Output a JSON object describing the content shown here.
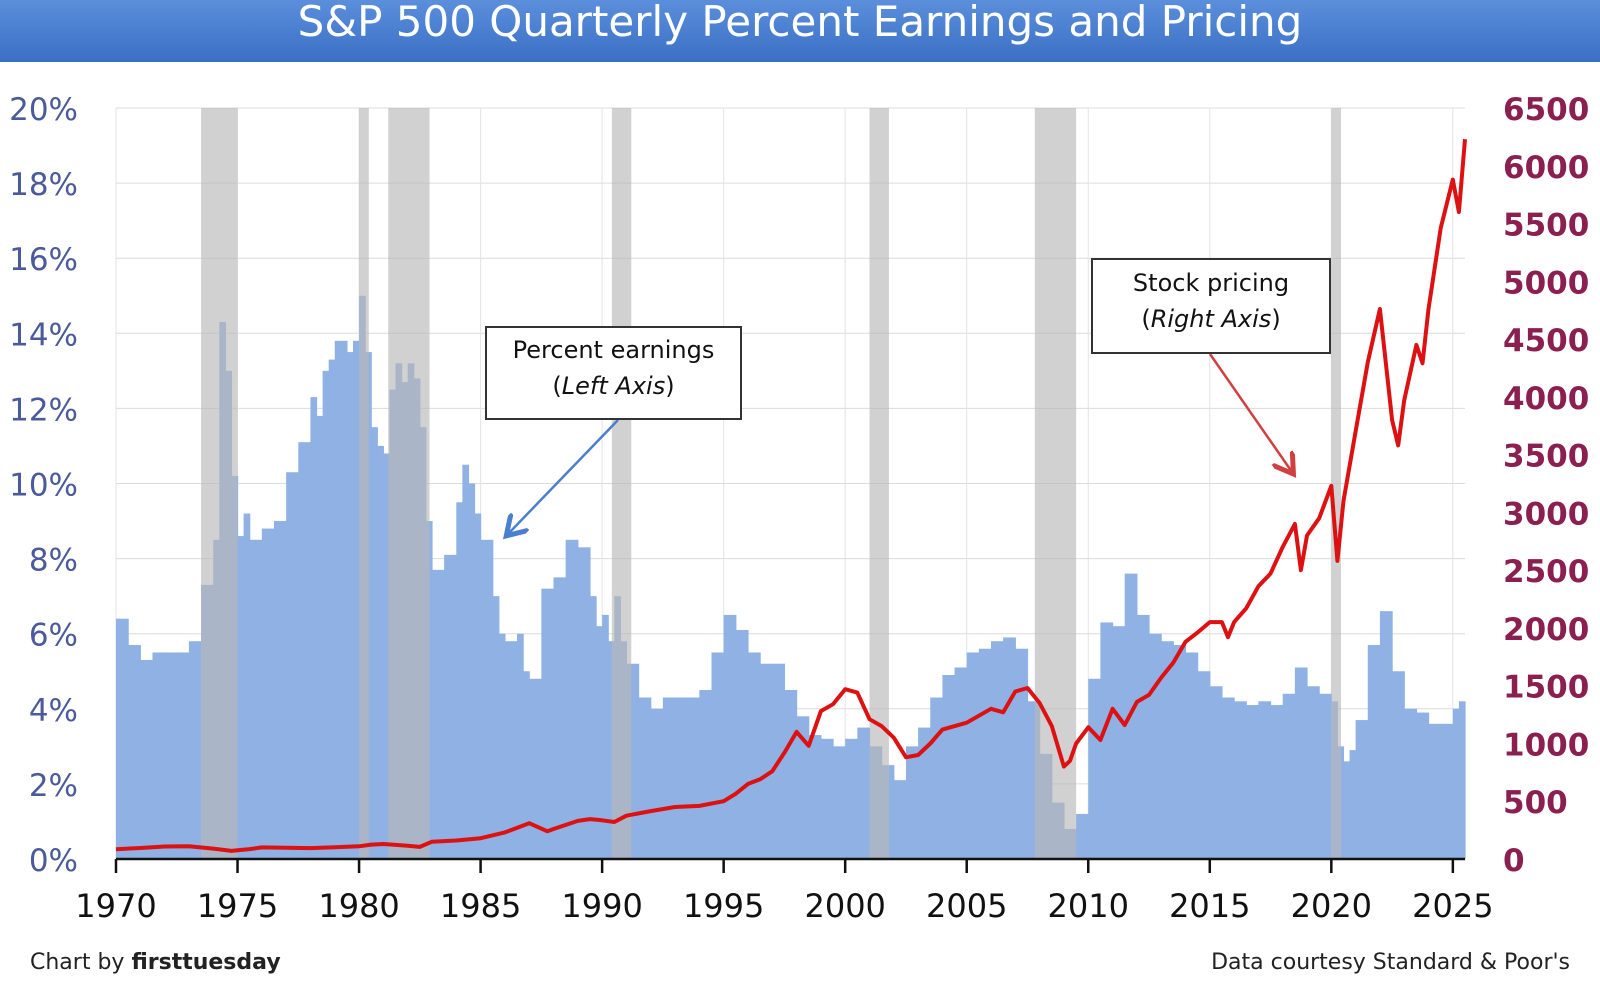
{
  "title": "S&P 500 Quarterly Percent Earnings and Pricing",
  "footer": {
    "chart_by": "Chart by",
    "brand": "firsttuesday",
    "source": "Data courtesy Standard & Poor's"
  },
  "annotations": {
    "earnings": {
      "line1": "Percent earnings",
      "paren_open": "(",
      "italic": "Left Axis",
      "paren_close": ")"
    },
    "pricing": {
      "line1": "Stock pricing",
      "paren_open": "(",
      "italic": "Right Axis",
      "paren_close": ")"
    }
  },
  "colors": {
    "bars": "#8fb1e3",
    "line": "#dd1111",
    "recession": "#b8b8b8",
    "left_axis_text": "#4a5a9a",
    "right_axis_text": "#8b1f4f",
    "earnings_arrow": "#4a7fd0",
    "pricing_arrow": "#d04040"
  },
  "chart_data": {
    "type": "bar",
    "x_ticks": [
      "1970",
      "1975",
      "1980",
      "1985",
      "1990",
      "1995",
      "2000",
      "2005",
      "2010",
      "2015",
      "2020",
      "2025"
    ],
    "y_left_ticks": [
      "0%",
      "2%",
      "4%",
      "6%",
      "8%",
      "10%",
      "12%",
      "14%",
      "16%",
      "18%",
      "20%"
    ],
    "y_right_ticks": [
      "0",
      "500",
      "1000",
      "1500",
      "2000",
      "2500",
      "3000",
      "3500",
      "4000",
      "4500",
      "5000",
      "5500",
      "6000",
      "6500"
    ],
    "xlim": [
      1970,
      2025.5
    ],
    "ylim_left": [
      0,
      20
    ],
    "ylim_right": [
      0,
      6500
    ],
    "grid": true,
    "recessions": [
      [
        1973.5,
        1975.0
      ],
      [
        1980.0,
        1980.4
      ],
      [
        1981.2,
        1982.9
      ],
      [
        1990.4,
        1991.2
      ],
      [
        2001.0,
        2001.8
      ],
      [
        2007.8,
        2009.5
      ],
      [
        2020.0,
        2020.4
      ]
    ],
    "series": [
      {
        "axis": "left",
        "type": "bar",
        "points": [
          [
            1970.0,
            6.4
          ],
          [
            1970.5,
            5.7
          ],
          [
            1971.0,
            5.3
          ],
          [
            1971.5,
            5.5
          ],
          [
            1972.0,
            5.5
          ],
          [
            1972.5,
            5.5
          ],
          [
            1973.0,
            5.8
          ],
          [
            1973.5,
            7.3
          ],
          [
            1974.0,
            8.5
          ],
          [
            1974.25,
            14.3
          ],
          [
            1974.5,
            13.0
          ],
          [
            1974.75,
            10.2
          ],
          [
            1975.0,
            8.6
          ],
          [
            1975.25,
            9.2
          ],
          [
            1975.5,
            8.5
          ],
          [
            1975.75,
            8.5
          ],
          [
            1976.0,
            8.8
          ],
          [
            1976.5,
            9.0
          ],
          [
            1977.0,
            10.3
          ],
          [
            1977.5,
            11.1
          ],
          [
            1978.0,
            12.3
          ],
          [
            1978.25,
            11.8
          ],
          [
            1978.5,
            13.0
          ],
          [
            1978.75,
            13.3
          ],
          [
            1979.0,
            13.8
          ],
          [
            1979.5,
            13.5
          ],
          [
            1979.75,
            13.8
          ],
          [
            1980.0,
            15.0
          ],
          [
            1980.25,
            13.5
          ],
          [
            1980.5,
            11.5
          ],
          [
            1980.75,
            11.0
          ],
          [
            1981.0,
            10.8
          ],
          [
            1981.25,
            12.5
          ],
          [
            1981.5,
            13.2
          ],
          [
            1981.75,
            12.7
          ],
          [
            1982.0,
            13.2
          ],
          [
            1982.25,
            12.8
          ],
          [
            1982.5,
            11.5
          ],
          [
            1982.75,
            9.0
          ],
          [
            1983.0,
            7.7
          ],
          [
            1983.5,
            8.1
          ],
          [
            1984.0,
            9.5
          ],
          [
            1984.25,
            10.5
          ],
          [
            1984.5,
            10.0
          ],
          [
            1984.75,
            9.2
          ],
          [
            1985.0,
            8.5
          ],
          [
            1985.5,
            7.0
          ],
          [
            1985.75,
            6.0
          ],
          [
            1986.0,
            5.8
          ],
          [
            1986.5,
            6.0
          ],
          [
            1986.75,
            5.0
          ],
          [
            1987.0,
            4.8
          ],
          [
            1987.5,
            7.2
          ],
          [
            1988.0,
            7.5
          ],
          [
            1988.5,
            8.5
          ],
          [
            1989.0,
            8.3
          ],
          [
            1989.5,
            7.0
          ],
          [
            1989.75,
            6.2
          ],
          [
            1990.0,
            6.5
          ],
          [
            1990.25,
            5.8
          ],
          [
            1990.5,
            7.0
          ],
          [
            1990.75,
            5.8
          ],
          [
            1991.0,
            5.2
          ],
          [
            1991.5,
            4.3
          ],
          [
            1992.0,
            4.0
          ],
          [
            1992.5,
            4.3
          ],
          [
            1993.0,
            4.3
          ],
          [
            1993.5,
            4.3
          ],
          [
            1994.0,
            4.5
          ],
          [
            1994.5,
            5.5
          ],
          [
            1995.0,
            6.5
          ],
          [
            1995.5,
            6.1
          ],
          [
            1996.0,
            5.5
          ],
          [
            1996.5,
            5.2
          ],
          [
            1997.0,
            5.2
          ],
          [
            1997.5,
            4.5
          ],
          [
            1998.0,
            3.8
          ],
          [
            1998.5,
            3.3
          ],
          [
            1999.0,
            3.2
          ],
          [
            1999.5,
            3.0
          ],
          [
            2000.0,
            3.2
          ],
          [
            2000.5,
            3.5
          ],
          [
            2001.0,
            3.0
          ],
          [
            2001.5,
            2.5
          ],
          [
            2002.0,
            2.1
          ],
          [
            2002.5,
            3.0
          ],
          [
            2003.0,
            3.5
          ],
          [
            2003.5,
            4.3
          ],
          [
            2004.0,
            4.9
          ],
          [
            2004.5,
            5.1
          ],
          [
            2005.0,
            5.5
          ],
          [
            2005.5,
            5.6
          ],
          [
            2006.0,
            5.8
          ],
          [
            2006.5,
            5.9
          ],
          [
            2007.0,
            5.6
          ],
          [
            2007.5,
            4.2
          ],
          [
            2008.0,
            2.8
          ],
          [
            2008.5,
            1.5
          ],
          [
            2009.0,
            0.8
          ],
          [
            2009.5,
            1.2
          ],
          [
            2010.0,
            4.8
          ],
          [
            2010.5,
            6.3
          ],
          [
            2011.0,
            6.2
          ],
          [
            2011.5,
            7.6
          ],
          [
            2012.0,
            6.5
          ],
          [
            2012.5,
            6.0
          ],
          [
            2013.0,
            5.8
          ],
          [
            2013.5,
            5.7
          ],
          [
            2014.0,
            5.5
          ],
          [
            2014.5,
            5.0
          ],
          [
            2015.0,
            4.6
          ],
          [
            2015.5,
            4.3
          ],
          [
            2016.0,
            4.2
          ],
          [
            2016.5,
            4.1
          ],
          [
            2017.0,
            4.2
          ],
          [
            2017.5,
            4.1
          ],
          [
            2018.0,
            4.4
          ],
          [
            2018.5,
            5.1
          ],
          [
            2019.0,
            4.6
          ],
          [
            2019.5,
            4.4
          ],
          [
            2020.0,
            4.2
          ],
          [
            2020.25,
            3.0
          ],
          [
            2020.5,
            2.6
          ],
          [
            2020.75,
            2.9
          ],
          [
            2021.0,
            3.7
          ],
          [
            2021.5,
            5.7
          ],
          [
            2022.0,
            6.6
          ],
          [
            2022.5,
            5.0
          ],
          [
            2023.0,
            4.0
          ],
          [
            2023.5,
            3.9
          ],
          [
            2024.0,
            3.6
          ],
          [
            2024.5,
            3.6
          ],
          [
            2025.0,
            4.0
          ],
          [
            2025.25,
            4.2
          ]
        ]
      },
      {
        "axis": "right",
        "type": "line",
        "points": [
          [
            1970.0,
            85
          ],
          [
            1971.0,
            95
          ],
          [
            1972.0,
            108
          ],
          [
            1973.0,
            110
          ],
          [
            1974.0,
            90
          ],
          [
            1974.75,
            70
          ],
          [
            1975.0,
            75
          ],
          [
            1975.5,
            86
          ],
          [
            1976.0,
            100
          ],
          [
            1977.0,
            98
          ],
          [
            1978.0,
            94
          ],
          [
            1979.0,
            102
          ],
          [
            1980.0,
            110
          ],
          [
            1980.5,
            125
          ],
          [
            1981.0,
            130
          ],
          [
            1982.0,
            115
          ],
          [
            1982.5,
            105
          ],
          [
            1983.0,
            150
          ],
          [
            1984.0,
            160
          ],
          [
            1985.0,
            180
          ],
          [
            1986.0,
            230
          ],
          [
            1987.0,
            310
          ],
          [
            1987.75,
            240
          ],
          [
            1988.0,
            260
          ],
          [
            1989.0,
            330
          ],
          [
            1989.5,
            345
          ],
          [
            1990.0,
            335
          ],
          [
            1990.5,
            320
          ],
          [
            1991.0,
            375
          ],
          [
            1992.0,
            415
          ],
          [
            1993.0,
            450
          ],
          [
            1994.0,
            460
          ],
          [
            1995.0,
            500
          ],
          [
            1995.5,
            565
          ],
          [
            1996.0,
            650
          ],
          [
            1996.5,
            690
          ],
          [
            1997.0,
            760
          ],
          [
            1997.5,
            920
          ],
          [
            1998.0,
            1100
          ],
          [
            1998.5,
            980
          ],
          [
            1999.0,
            1280
          ],
          [
            1999.5,
            1340
          ],
          [
            2000.0,
            1470
          ],
          [
            2000.5,
            1440
          ],
          [
            2001.0,
            1210
          ],
          [
            2001.5,
            1150
          ],
          [
            2002.0,
            1050
          ],
          [
            2002.5,
            880
          ],
          [
            2003.0,
            900
          ],
          [
            2003.5,
            1000
          ],
          [
            2004.0,
            1120
          ],
          [
            2005.0,
            1180
          ],
          [
            2006.0,
            1300
          ],
          [
            2006.5,
            1270
          ],
          [
            2007.0,
            1450
          ],
          [
            2007.5,
            1480
          ],
          [
            2008.0,
            1350
          ],
          [
            2008.5,
            1150
          ],
          [
            2009.0,
            800
          ],
          [
            2009.25,
            850
          ],
          [
            2009.5,
            1000
          ],
          [
            2010.0,
            1140
          ],
          [
            2010.5,
            1030
          ],
          [
            2011.0,
            1300
          ],
          [
            2011.5,
            1160
          ],
          [
            2012.0,
            1360
          ],
          [
            2012.5,
            1420
          ],
          [
            2013.0,
            1570
          ],
          [
            2013.5,
            1700
          ],
          [
            2014.0,
            1880
          ],
          [
            2014.5,
            1960
          ],
          [
            2015.0,
            2050
          ],
          [
            2015.5,
            2050
          ],
          [
            2015.75,
            1920
          ],
          [
            2016.0,
            2050
          ],
          [
            2016.5,
            2170
          ],
          [
            2017.0,
            2360
          ],
          [
            2017.5,
            2470
          ],
          [
            2018.0,
            2700
          ],
          [
            2018.5,
            2900
          ],
          [
            2018.75,
            2500
          ],
          [
            2019.0,
            2800
          ],
          [
            2019.5,
            2950
          ],
          [
            2020.0,
            3230
          ],
          [
            2020.25,
            2580
          ],
          [
            2020.5,
            3100
          ],
          [
            2021.0,
            3700
          ],
          [
            2021.5,
            4300
          ],
          [
            2022.0,
            4760
          ],
          [
            2022.5,
            3800
          ],
          [
            2022.75,
            3580
          ],
          [
            2023.0,
            3970
          ],
          [
            2023.5,
            4450
          ],
          [
            2023.75,
            4290
          ],
          [
            2024.0,
            4760
          ],
          [
            2024.5,
            5460
          ],
          [
            2025.0,
            5880
          ],
          [
            2025.25,
            5600
          ],
          [
            2025.5,
            6230
          ]
        ]
      }
    ]
  }
}
